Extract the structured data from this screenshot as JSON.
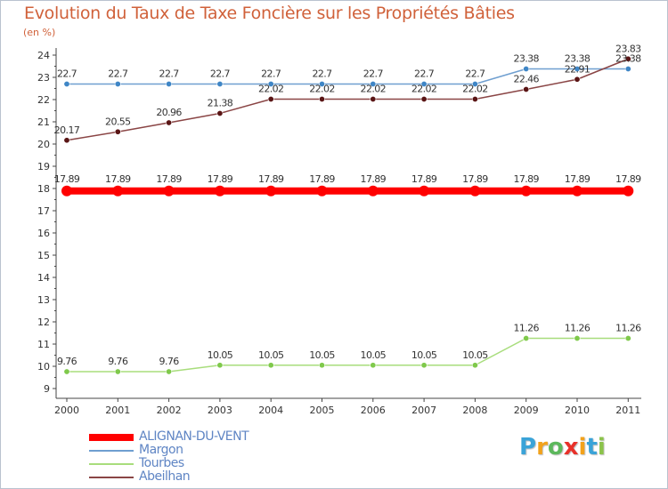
{
  "chart_data": {
    "type": "line",
    "title": "Evolution du Taux de Taxe Foncière sur les Propriétés Bâties",
    "subtitle": "(en %)",
    "xlabel": "",
    "ylabel": "",
    "categories": [
      "2000",
      "2001",
      "2002",
      "2003",
      "2004",
      "2005",
      "2006",
      "2007",
      "2008",
      "2009",
      "2010",
      "2011"
    ],
    "ylim": [
      9,
      24
    ],
    "yticks": [
      "9",
      "10",
      "11",
      "12",
      "13",
      "14",
      "15",
      "16",
      "17",
      "18",
      "19",
      "20",
      "21",
      "22",
      "23",
      "24"
    ],
    "grid": false,
    "legend_position": "bottom-left",
    "series": [
      {
        "name": "ALIGNAN-DU-VENT",
        "color": "#ff0000",
        "marker_color": "#ff0000",
        "values": [
          17.89,
          17.89,
          17.89,
          17.89,
          17.89,
          17.89,
          17.89,
          17.89,
          17.89,
          17.89,
          17.89,
          17.89
        ],
        "labels": [
          "17.89",
          "17.89",
          "17.89",
          "17.89",
          "17.89",
          "17.89",
          "17.89",
          "17.89",
          "17.89",
          "17.89",
          "17.89",
          "17.89"
        ]
      },
      {
        "name": "Margon",
        "color": "#6f9fd0",
        "marker_color": "#3f86c6",
        "values": [
          22.7,
          22.7,
          22.7,
          22.7,
          22.7,
          22.7,
          22.7,
          22.7,
          22.7,
          23.38,
          23.38,
          23.38
        ],
        "labels": [
          "22.7",
          "22.7",
          "22.7",
          "22.7",
          "22.7",
          "22.7",
          "22.7",
          "22.7",
          "22.7",
          "23.38",
          "23.38",
          "23.38"
        ]
      },
      {
        "name": "Tourbes",
        "color": "#a8dd7c",
        "marker_color": "#7fc94b",
        "values": [
          9.76,
          9.76,
          9.76,
          10.05,
          10.05,
          10.05,
          10.05,
          10.05,
          10.05,
          11.26,
          11.26,
          11.26
        ],
        "labels": [
          "9.76",
          "9.76",
          "9.76",
          "10.05",
          "10.05",
          "10.05",
          "10.05",
          "10.05",
          "10.05",
          "11.26",
          "11.26",
          "11.26"
        ]
      },
      {
        "name": "Abeilhan",
        "color": "#8a4545",
        "marker_color": "#5a1515",
        "values": [
          20.17,
          20.55,
          20.96,
          21.38,
          22.02,
          22.02,
          22.02,
          22.02,
          22.02,
          22.46,
          22.91,
          23.83
        ],
        "labels": [
          "20.17",
          "20.55",
          "20.96",
          "21.38",
          "22.02",
          "22.02",
          "22.02",
          "22.02",
          "22.02",
          "22.46",
          "22.91",
          "23.83"
        ]
      }
    ]
  },
  "logo": {
    "letters": [
      "P",
      "r",
      "o",
      "x",
      "i",
      "t",
      "i"
    ],
    "colors": [
      "#3aa3d8",
      "#f2a21b",
      "#5cb85c",
      "#e8312a",
      "#f2a21b",
      "#3aa3d8",
      "#8bc34a"
    ]
  }
}
